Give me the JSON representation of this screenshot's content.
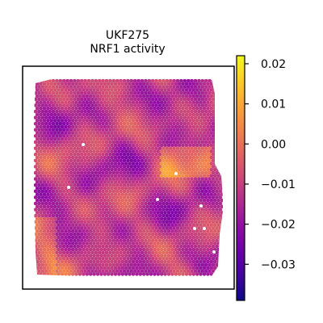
{
  "chart_data": {
    "type": "heatmap",
    "title_line1": "UKF275",
    "title_line2": "NRF1 activity",
    "xlabel": "",
    "ylabel": "",
    "colormap": "plasma",
    "colorbar": {
      "vmin": -0.039,
      "vmax": 0.022,
      "ticks": [
        0.02,
        0.01,
        0.0,
        -0.01,
        -0.02,
        -0.03
      ],
      "tick_labels": [
        "0.02",
        "0.01",
        "0.00",
        "−0.01",
        "−0.02",
        "−0.03"
      ]
    },
    "background_spot_color": "#ffffff",
    "summary": {
      "value_range": [
        -0.039,
        0.022
      ],
      "typical_value": -0.012
    }
  }
}
